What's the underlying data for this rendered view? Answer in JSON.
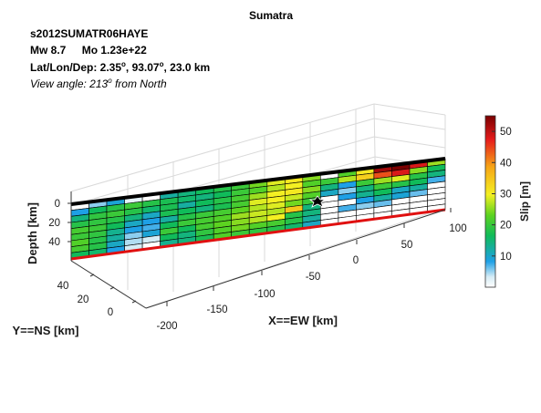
{
  "chart_data": {
    "type": "heatmap",
    "title": "Sumatra",
    "header": {
      "event_id": "s2012SUMATR06HAYE",
      "mw": "Mw 8.7",
      "mo": "Mo 1.23e+22",
      "latlon_prefix": "Lat/Lon/Dep: 2.35",
      "deg": "o",
      "latlon_mid": ", 93.07",
      "latlon_suffix": ", 23.0 km",
      "view_prefix": "View angle: 213",
      "view_suffix": " from North"
    },
    "xlabel": "X==EW [km]",
    "ylabel": "Y==NS [km]",
    "zlabel": "Depth [km]",
    "x_ticks": [
      "-200",
      "-150",
      "-100",
      "-50",
      "0",
      "50",
      "100"
    ],
    "y_ticks": [
      "40",
      "20",
      "0"
    ],
    "z_ticks": [
      "0",
      "20",
      "40"
    ],
    "colorbar": {
      "label": "Slip [m]",
      "range": [
        0,
        55
      ],
      "ticks": [
        "10",
        "20",
        "30",
        "40",
        "50"
      ],
      "colormap": "white-blue-green-yellow-red-darkred"
    },
    "grid": "on",
    "fault_ncols": 21,
    "fault_nrows": 9,
    "slip": [
      [
        0,
        5,
        9,
        2,
        0,
        12,
        14,
        16,
        18,
        20,
        24,
        29,
        31,
        25,
        0,
        22,
        31,
        52,
        55,
        48,
        26
      ],
      [
        8,
        16,
        18,
        20,
        18,
        17,
        15,
        14,
        16,
        20,
        22,
        27,
        30,
        22,
        20,
        27,
        34,
        44,
        48,
        25,
        16
      ],
      [
        14,
        19,
        20,
        18,
        15,
        17,
        12,
        16,
        18,
        21,
        26,
        30,
        31,
        25,
        14,
        8,
        20,
        26,
        29,
        18,
        14
      ],
      [
        18,
        19,
        18,
        14,
        10,
        17,
        16,
        14,
        17,
        21,
        29,
        30,
        28,
        22,
        10,
        5,
        14,
        20,
        18,
        16,
        7
      ],
      [
        21,
        20,
        16,
        10,
        8,
        12,
        18,
        20,
        21,
        23,
        27,
        29,
        24,
        20,
        0,
        8,
        13,
        16,
        10,
        12,
        0
      ],
      [
        20,
        19,
        13,
        8,
        7,
        16,
        20,
        21,
        22,
        26,
        28,
        27,
        35,
        14,
        0,
        0,
        8,
        12,
        9,
        6,
        0
      ],
      [
        22,
        18,
        12,
        5,
        9,
        20,
        16,
        21,
        23,
        25,
        27,
        30,
        18,
        14,
        0,
        7,
        5,
        6,
        0,
        0,
        0
      ],
      [
        21,
        18,
        10,
        4,
        3,
        16,
        14,
        19,
        22,
        24,
        22,
        21,
        18,
        12,
        0,
        0,
        0,
        0,
        0,
        0,
        0
      ],
      [
        16,
        15,
        8,
        3,
        0,
        13,
        14,
        17,
        22,
        20,
        19,
        18,
        15,
        10,
        0,
        0,
        0,
        0,
        0,
        0,
        0
      ]
    ]
  }
}
